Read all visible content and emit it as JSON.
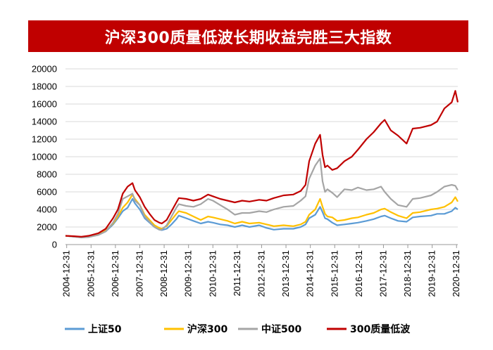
{
  "chart_data": {
    "type": "line",
    "title": "沪深300质量低波长期收益完胜三大指数",
    "xlabel": "",
    "ylabel": "",
    "ylim": [
      0,
      20000
    ],
    "y_ticks": [
      0,
      2000,
      4000,
      6000,
      8000,
      10000,
      12000,
      14000,
      16000,
      18000,
      20000
    ],
    "x_ticks": [
      "2004-12-31",
      "2005-12-31",
      "2006-12-31",
      "2007-12-31",
      "2008-12-31",
      "2009-12-31",
      "2010-12-31",
      "2011-12-31",
      "2012-12-31",
      "2013-12-31",
      "2014-12-31",
      "2015-12-31",
      "2016-12-31",
      "2017-12-31",
      "2018-12-31",
      "2019-12-31",
      "2020-12-31"
    ],
    "x_range": [
      2004.95,
      2021.05
    ],
    "legend_position": "bottom",
    "series": [
      {
        "name": "上证50",
        "color": "#5b9bd5",
        "x": [
          2004.95,
          2005.3,
          2005.6,
          2005.9,
          2006.3,
          2006.6,
          2006.9,
          2007.1,
          2007.3,
          2007.5,
          2007.7,
          2007.8,
          2008.0,
          2008.2,
          2008.4,
          2008.6,
          2008.8,
          2008.9,
          2009.1,
          2009.3,
          2009.5,
          2009.6,
          2009.9,
          2010.2,
          2010.5,
          2010.8,
          2011.0,
          2011.3,
          2011.6,
          2011.9,
          2012.2,
          2012.5,
          2012.9,
          2013.2,
          2013.5,
          2013.9,
          2014.3,
          2014.6,
          2014.8,
          2014.95,
          2015.2,
          2015.4,
          2015.5,
          2015.6,
          2015.7,
          2015.9,
          2016.1,
          2016.4,
          2016.7,
          2016.95,
          2017.3,
          2017.6,
          2017.9,
          2018.05,
          2018.3,
          2018.6,
          2018.95,
          2019.2,
          2019.5,
          2019.95,
          2020.2,
          2020.5,
          2020.8,
          2020.95,
          2021.05
        ],
        "values": [
          1000,
          900,
          820,
          900,
          1100,
          1500,
          2300,
          3000,
          3800,
          4200,
          5200,
          4700,
          4000,
          3000,
          2500,
          2000,
          1700,
          1650,
          1800,
          2300,
          2900,
          3300,
          3000,
          2700,
          2400,
          2600,
          2500,
          2300,
          2200,
          2000,
          2200,
          2000,
          2200,
          1900,
          1700,
          1800,
          1800,
          2000,
          2300,
          3000,
          3400,
          4300,
          3700,
          3000,
          2900,
          2500,
          2200,
          2300,
          2400,
          2500,
          2700,
          2900,
          3200,
          3300,
          3000,
          2700,
          2600,
          3100,
          3200,
          3300,
          3500,
          3500,
          3800,
          4200,
          4000
        ]
      },
      {
        "name": "沪深300",
        "color": "#ffc000",
        "x": [
          2004.95,
          2005.3,
          2005.6,
          2005.9,
          2006.3,
          2006.6,
          2006.9,
          2007.1,
          2007.3,
          2007.5,
          2007.7,
          2007.8,
          2008.0,
          2008.2,
          2008.4,
          2008.6,
          2008.8,
          2008.9,
          2009.1,
          2009.3,
          2009.5,
          2009.6,
          2009.9,
          2010.2,
          2010.5,
          2010.8,
          2011.0,
          2011.3,
          2011.6,
          2011.9,
          2012.2,
          2012.5,
          2012.9,
          2013.2,
          2013.5,
          2013.9,
          2014.3,
          2014.6,
          2014.8,
          2014.95,
          2015.2,
          2015.4,
          2015.5,
          2015.6,
          2015.7,
          2015.9,
          2016.1,
          2016.4,
          2016.7,
          2016.95,
          2017.3,
          2017.6,
          2017.9,
          2018.05,
          2018.3,
          2018.6,
          2018.95,
          2019.2,
          2019.5,
          2019.95,
          2020.2,
          2020.5,
          2020.8,
          2020.95,
          2021.05
        ],
        "values": [
          1000,
          920,
          850,
          950,
          1200,
          1600,
          2400,
          3200,
          4200,
          4800,
          5700,
          5200,
          4500,
          3400,
          2800,
          2200,
          1900,
          1800,
          2100,
          2800,
          3500,
          3800,
          3600,
          3200,
          2800,
          3200,
          3100,
          2900,
          2700,
          2400,
          2600,
          2400,
          2500,
          2300,
          2100,
          2200,
          2100,
          2300,
          2600,
          3400,
          4000,
          5200,
          4300,
          3500,
          3200,
          3100,
          2700,
          2800,
          3000,
          3100,
          3400,
          3600,
          4000,
          4100,
          3700,
          3300,
          3000,
          3600,
          3700,
          4000,
          4100,
          4300,
          4800,
          5400,
          4900
        ]
      },
      {
        "name": "中证500",
        "color": "#a5a5a5",
        "x": [
          2004.95,
          2005.3,
          2005.6,
          2005.9,
          2006.3,
          2006.6,
          2006.9,
          2007.1,
          2007.3,
          2007.5,
          2007.7,
          2007.8,
          2008.0,
          2008.2,
          2008.4,
          2008.6,
          2008.8,
          2008.9,
          2009.1,
          2009.3,
          2009.5,
          2009.6,
          2009.9,
          2010.2,
          2010.5,
          2010.8,
          2011.0,
          2011.3,
          2011.6,
          2011.9,
          2012.2,
          2012.5,
          2012.9,
          2013.2,
          2013.5,
          2013.9,
          2014.3,
          2014.6,
          2014.8,
          2014.95,
          2015.2,
          2015.4,
          2015.5,
          2015.6,
          2015.7,
          2015.9,
          2016.1,
          2016.4,
          2016.7,
          2016.95,
          2017.3,
          2017.6,
          2017.9,
          2018.05,
          2018.3,
          2018.6,
          2018.95,
          2019.2,
          2019.5,
          2019.95,
          2020.2,
          2020.5,
          2020.8,
          2020.95,
          2021.05
        ],
        "values": [
          1000,
          900,
          800,
          850,
          1100,
          1500,
          2500,
          3500,
          5200,
          5500,
          5800,
          5000,
          4500,
          3200,
          2600,
          2000,
          1700,
          1700,
          2200,
          3200,
          4200,
          4600,
          4400,
          4300,
          4600,
          5200,
          5000,
          4500,
          4000,
          3400,
          3600,
          3600,
          3800,
          3700,
          4000,
          4300,
          4400,
          5000,
          5500,
          7500,
          9000,
          9800,
          7200,
          6000,
          6300,
          5900,
          5400,
          6300,
          6200,
          6500,
          6200,
          6300,
          6600,
          6000,
          5200,
          4500,
          4300,
          5200,
          5300,
          5600,
          6000,
          6600,
          6800,
          6700,
          6200
        ]
      },
      {
        "name": "300质量低波",
        "color": "#c00000",
        "x": [
          2004.95,
          2005.3,
          2005.6,
          2005.9,
          2006.3,
          2006.6,
          2006.9,
          2007.1,
          2007.3,
          2007.5,
          2007.7,
          2007.8,
          2008.0,
          2008.2,
          2008.4,
          2008.6,
          2008.8,
          2008.9,
          2009.1,
          2009.3,
          2009.5,
          2009.6,
          2009.9,
          2010.2,
          2010.5,
          2010.8,
          2011.0,
          2011.3,
          2011.6,
          2011.9,
          2012.2,
          2012.5,
          2012.9,
          2013.2,
          2013.5,
          2013.9,
          2014.3,
          2014.6,
          2014.8,
          2014.95,
          2015.2,
          2015.4,
          2015.5,
          2015.6,
          2015.7,
          2015.9,
          2016.1,
          2016.4,
          2016.7,
          2016.95,
          2017.3,
          2017.6,
          2017.9,
          2018.05,
          2018.3,
          2018.6,
          2018.95,
          2019.2,
          2019.5,
          2019.95,
          2020.2,
          2020.5,
          2020.8,
          2020.95,
          2021.05
        ],
        "values": [
          1000,
          950,
          900,
          1000,
          1300,
          1800,
          3000,
          4000,
          5800,
          6600,
          7000,
          6200,
          5400,
          4300,
          3500,
          2800,
          2500,
          2400,
          2800,
          3800,
          4800,
          5300,
          5200,
          5000,
          5200,
          5700,
          5500,
          5200,
          5000,
          4800,
          5000,
          4900,
          5100,
          5000,
          5300,
          5600,
          5700,
          6100,
          6800,
          9500,
          11500,
          12500,
          10200,
          8800,
          9000,
          8500,
          8700,
          9500,
          10000,
          10800,
          12000,
          12800,
          13800,
          14200,
          13000,
          12400,
          11500,
          13200,
          13300,
          13600,
          14000,
          15500,
          16200,
          17500,
          16200
        ]
      }
    ]
  }
}
